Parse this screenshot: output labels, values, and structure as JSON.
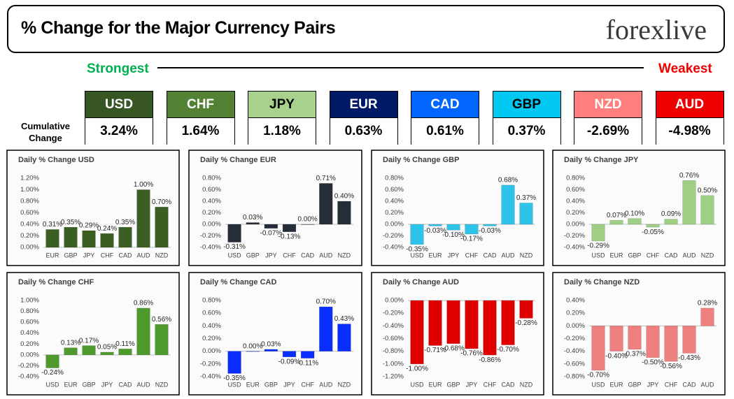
{
  "header": {
    "title": "% Change for the Major Currency Pairs",
    "logo": "forexlive"
  },
  "scale": {
    "strongest": "Strongest",
    "weakest": "Weakest"
  },
  "cumulative_label": "Cumulative Change",
  "ranking": [
    {
      "currency": "USD",
      "change": "3.24%",
      "color": "#375623",
      "text_color": "#ffffff"
    },
    {
      "currency": "CHF",
      "change": "1.64%",
      "color": "#548235",
      "text_color": "#ffffff"
    },
    {
      "currency": "JPY",
      "change": "1.18%",
      "color": "#a9d18e",
      "text_color": "#000000"
    },
    {
      "currency": "EUR",
      "change": "0.63%",
      "color": "#001a66",
      "text_color": "#ffffff"
    },
    {
      "currency": "CAD",
      "change": "0.61%",
      "color": "#0066ff",
      "text_color": "#ffffff"
    },
    {
      "currency": "GBP",
      "change": "0.37%",
      "color": "#00c8f0",
      "text_color": "#000000"
    },
    {
      "currency": "NZD",
      "change": "-2.69%",
      "color": "#ff7f7f",
      "text_color": "#ffffff"
    },
    {
      "currency": "AUD",
      "change": "-4.98%",
      "color": "#ee0000",
      "text_color": "#ffffff"
    }
  ],
  "chart_data": [
    {
      "type": "bar",
      "title": "Daily % Change USD",
      "color": "#3b5e22",
      "categories": [
        "EUR",
        "GBP",
        "JPY",
        "CHF",
        "CAD",
        "AUD",
        "NZD"
      ],
      "values": [
        0.31,
        0.35,
        0.29,
        0.24,
        0.35,
        1.0,
        0.7
      ],
      "value_labels": [
        "0.31%",
        "0.35%",
        "0.29%",
        "0.24%",
        "0.35%",
        "1.00%",
        "0.70%"
      ],
      "ylim": [
        0,
        1.2
      ],
      "yticks": [
        {
          "value": 0,
          "label": "0.00%"
        },
        {
          "value": 0.2,
          "label": "0.20%"
        },
        {
          "value": 0.4,
          "label": "0.40%"
        },
        {
          "value": 0.6,
          "label": "0.60%"
        },
        {
          "value": 0.8,
          "label": "0.80%"
        },
        {
          "value": 1.0,
          "label": "1.00%"
        },
        {
          "value": 1.2,
          "label": "1.20%"
        }
      ]
    },
    {
      "type": "bar",
      "title": "Daily % Change EUR",
      "color": "#252d38",
      "categories": [
        "USD",
        "GBP",
        "JPY",
        "CHF",
        "CAD",
        "AUD",
        "NZD"
      ],
      "values": [
        -0.31,
        0.03,
        -0.07,
        -0.13,
        0.0,
        0.71,
        0.4
      ],
      "value_labels": [
        "-0.31%",
        "0.03%",
        "-0.07%",
        "-0.13%",
        "0.00%",
        "0.71%",
        "0.40%"
      ],
      "ylim": [
        -0.4,
        0.8
      ],
      "yticks": [
        {
          "value": -0.4,
          "label": "-0.40%"
        },
        {
          "value": -0.2,
          "label": "-0.20%"
        },
        {
          "value": 0,
          "label": "0.00%"
        },
        {
          "value": 0.2,
          "label": "0.20%"
        },
        {
          "value": 0.4,
          "label": "0.40%"
        },
        {
          "value": 0.6,
          "label": "0.60%"
        },
        {
          "value": 0.8,
          "label": "0.80%"
        }
      ]
    },
    {
      "type": "bar",
      "title": "Daily % Change GBP",
      "color": "#2ec3e8",
      "categories": [
        "USD",
        "EUR",
        "JPY",
        "CHF",
        "CAD",
        "AUD",
        "NZD"
      ],
      "values": [
        -0.35,
        -0.03,
        -0.1,
        -0.17,
        -0.03,
        0.68,
        0.37
      ],
      "value_labels": [
        "-0.35%",
        "-0.03%",
        "-0.10%",
        "-0.17%",
        "-0.03%",
        "0.68%",
        "0.37%"
      ],
      "ylim": [
        -0.4,
        0.8
      ],
      "yticks": [
        {
          "value": -0.4,
          "label": "-0.40%"
        },
        {
          "value": -0.2,
          "label": "-0.20%"
        },
        {
          "value": 0,
          "label": "0.00%"
        },
        {
          "value": 0.2,
          "label": "0.20%"
        },
        {
          "value": 0.4,
          "label": "0.40%"
        },
        {
          "value": 0.6,
          "label": "0.60%"
        },
        {
          "value": 0.8,
          "label": "0.80%"
        }
      ]
    },
    {
      "type": "bar",
      "title": "Daily % Change JPY",
      "color": "#9fcf84",
      "categories": [
        "USD",
        "EUR",
        "GBP",
        "CHF",
        "CAD",
        "AUD",
        "NZD"
      ],
      "values": [
        -0.29,
        0.07,
        0.1,
        -0.05,
        0.09,
        0.76,
        0.5
      ],
      "value_labels": [
        "-0.29%",
        "0.07%",
        "0.10%",
        "-0.05%",
        "0.09%",
        "0.76%",
        "0.50%"
      ],
      "ylim": [
        -0.4,
        0.8
      ],
      "yticks": [
        {
          "value": -0.4,
          "label": "-0.40%"
        },
        {
          "value": -0.2,
          "label": "-0.20%"
        },
        {
          "value": 0,
          "label": "0.00%"
        },
        {
          "value": 0.2,
          "label": "0.20%"
        },
        {
          "value": 0.4,
          "label": "0.40%"
        },
        {
          "value": 0.6,
          "label": "0.60%"
        },
        {
          "value": 0.8,
          "label": "0.80%"
        }
      ]
    },
    {
      "type": "bar",
      "title": "Daily % Change CHF",
      "color": "#4e9a2c",
      "categories": [
        "USD",
        "EUR",
        "GBP",
        "JPY",
        "CAD",
        "AUD",
        "NZD"
      ],
      "values": [
        -0.24,
        0.13,
        0.17,
        0.05,
        0.11,
        0.86,
        0.56
      ],
      "value_labels": [
        "-0.24%",
        "0.13%",
        "0.17%",
        "0.05%",
        "0.11%",
        "0.86%",
        "0.56%"
      ],
      "ylim": [
        -0.4,
        1.0
      ],
      "yticks": [
        {
          "value": -0.4,
          "label": "-0.40%"
        },
        {
          "value": -0.2,
          "label": "-0.20%"
        },
        {
          "value": 0,
          "label": "0.00%"
        },
        {
          "value": 0.2,
          "label": "0.20%"
        },
        {
          "value": 0.4,
          "label": "0.40%"
        },
        {
          "value": 0.6,
          "label": "0.60%"
        },
        {
          "value": 0.8,
          "label": "0.80%"
        },
        {
          "value": 1.0,
          "label": "1.00%"
        }
      ]
    },
    {
      "type": "bar",
      "title": "Daily % Change CAD",
      "color": "#0a2eff",
      "categories": [
        "USD",
        "EUR",
        "GBP",
        "JPY",
        "CHF",
        "AUD",
        "NZD"
      ],
      "values": [
        -0.35,
        0.0,
        0.03,
        -0.09,
        -0.11,
        0.7,
        0.43
      ],
      "value_labels": [
        "-0.35%",
        "0.00%",
        "0.03%",
        "-0.09%",
        "-0.11%",
        "0.70%",
        "0.43%"
      ],
      "ylim": [
        -0.4,
        0.8
      ],
      "yticks": [
        {
          "value": -0.4,
          "label": "-0.40%"
        },
        {
          "value": -0.2,
          "label": "-0.20%"
        },
        {
          "value": 0,
          "label": "0.00%"
        },
        {
          "value": 0.2,
          "label": "0.20%"
        },
        {
          "value": 0.4,
          "label": "0.40%"
        },
        {
          "value": 0.6,
          "label": "0.60%"
        },
        {
          "value": 0.8,
          "label": "0.80%"
        }
      ]
    },
    {
      "type": "bar",
      "title": "Daily % Change AUD",
      "color": "#e00000",
      "categories": [
        "USD",
        "EUR",
        "GBP",
        "JPY",
        "CHF",
        "CAD",
        "NZD"
      ],
      "values": [
        -1.0,
        -0.71,
        -0.68,
        -0.76,
        -0.86,
        -0.7,
        -0.28
      ],
      "value_labels": [
        "-1.00%",
        "-0.71%",
        "-0.68%",
        "-0.76%",
        "-0.86%",
        "-0.70%",
        "-0.28%"
      ],
      "ylim": [
        -1.2,
        0
      ],
      "yticks": [
        {
          "value": -1.2,
          "label": "-1.20%"
        },
        {
          "value": -1.0,
          "label": "-1.00%"
        },
        {
          "value": -0.8,
          "label": "-0.80%"
        },
        {
          "value": -0.6,
          "label": "-0.60%"
        },
        {
          "value": -0.4,
          "label": "-0.40%"
        },
        {
          "value": -0.2,
          "label": "-0.20%"
        },
        {
          "value": 0,
          "label": "0.00%"
        }
      ]
    },
    {
      "type": "bar",
      "title": "Daily % Change NZD",
      "color": "#ef8080",
      "categories": [
        "USD",
        "EUR",
        "GBP",
        "JPY",
        "CHF",
        "CAD",
        "AUD"
      ],
      "values": [
        -0.7,
        -0.4,
        -0.37,
        -0.5,
        -0.56,
        -0.43,
        0.28
      ],
      "value_labels": [
        "-0.70%",
        "-0.40%",
        "-0.37%",
        "-0.50%",
        "-0.56%",
        "-0.43%",
        "0.28%"
      ],
      "ylim": [
        -0.8,
        0.4
      ],
      "yticks": [
        {
          "value": -0.8,
          "label": "-0.80%"
        },
        {
          "value": -0.6,
          "label": "-0.60%"
        },
        {
          "value": -0.4,
          "label": "-0.40%"
        },
        {
          "value": -0.2,
          "label": "-0.20%"
        },
        {
          "value": 0,
          "label": "0.00%"
        },
        {
          "value": 0.2,
          "label": "0.20%"
        },
        {
          "value": 0.4,
          "label": "0.40%"
        }
      ]
    }
  ]
}
